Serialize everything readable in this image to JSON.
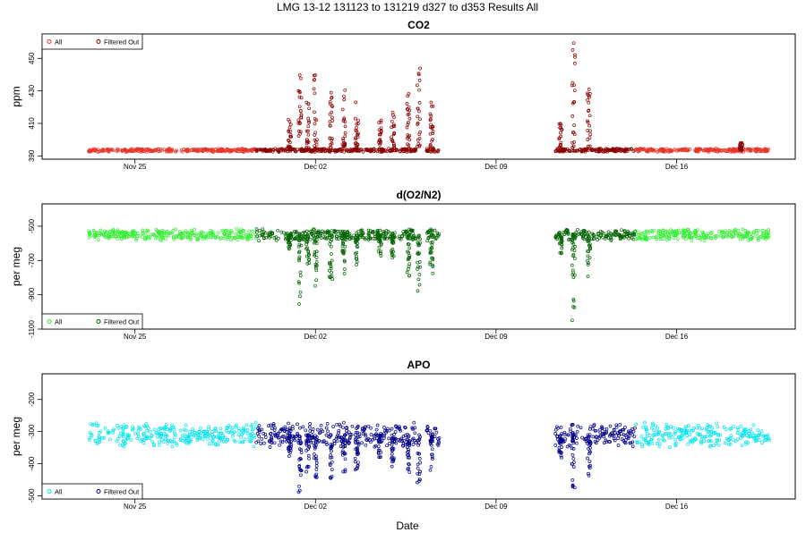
{
  "page_title": "LMG   13-12    131123 to 131219    d327 to d353   Results All",
  "xlabel": "Date",
  "x_ticks": [
    {
      "label": "Nov 25",
      "day": 2
    },
    {
      "label": "Dec 02",
      "day": 9
    },
    {
      "label": "Dec 09",
      "day": 16
    },
    {
      "label": "Dec 16",
      "day": 23
    }
  ],
  "x_range_days": [
    -1.6,
    27.6
  ],
  "chart_data": [
    {
      "type": "scatter",
      "title": "CO2",
      "ylabel": "ppm",
      "ylim": [
        388,
        465
      ],
      "yticks": [
        390,
        410,
        430,
        450
      ],
      "legend_position": "top-left",
      "legend": [
        {
          "label": "All",
          "color": "#e8352a"
        },
        {
          "label": "Filtered Out",
          "color": "#8b0000"
        }
      ],
      "baseline": 393.5,
      "noise": 0.6,
      "spike_direction": 1,
      "segments": [
        {
          "start": 0.2,
          "end": 6.7,
          "filtered": false
        },
        {
          "start": 6.7,
          "end": 11.4,
          "filtered": true
        },
        {
          "start": 11.4,
          "end": 12.9,
          "filtered": true
        },
        {
          "start": 13.3,
          "end": 13.8,
          "filtered": true
        },
        {
          "start": 18.3,
          "end": 21.4,
          "filtered": true
        },
        {
          "start": 21.4,
          "end": 22.8,
          "filtered": false
        },
        {
          "start": 22.8,
          "end": 26.6,
          "filtered": false
        }
      ],
      "spikes": [
        {
          "day": 8.0,
          "peak": 413
        },
        {
          "day": 8.4,
          "peak": 441
        },
        {
          "day": 8.7,
          "peak": 425
        },
        {
          "day": 9.0,
          "peak": 446
        },
        {
          "day": 9.6,
          "peak": 430
        },
        {
          "day": 10.1,
          "peak": 432
        },
        {
          "day": 10.6,
          "peak": 425
        },
        {
          "day": 11.5,
          "peak": 412
        },
        {
          "day": 12.0,
          "peak": 418
        },
        {
          "day": 12.6,
          "peak": 430
        },
        {
          "day": 13.0,
          "peak": 447
        },
        {
          "day": 13.5,
          "peak": 423
        },
        {
          "day": 18.5,
          "peak": 410
        },
        {
          "day": 19.0,
          "peak": 462
        },
        {
          "day": 19.6,
          "peak": 433
        },
        {
          "day": 25.5,
          "peak": 398
        }
      ]
    },
    {
      "type": "scatter",
      "title": "d(O2/N2)",
      "ylabel": "per meg",
      "ylim": [
        -1100,
        -370
      ],
      "yticks": [
        -1100,
        -900,
        -700,
        -500
      ],
      "legend_position": "bottom-left",
      "legend": [
        {
          "label": "All",
          "color": "#33ee33"
        },
        {
          "label": "Filtered Out",
          "color": "#006400"
        }
      ],
      "baseline": -550,
      "noise": 18,
      "spike_direction": -1,
      "segments": [
        {
          "start": 0.2,
          "end": 6.7,
          "filtered": false
        },
        {
          "start": 6.7,
          "end": 11.4,
          "filtered": true
        },
        {
          "start": 11.4,
          "end": 12.9,
          "filtered": true
        },
        {
          "start": 13.3,
          "end": 13.8,
          "filtered": true
        },
        {
          "start": 18.3,
          "end": 21.4,
          "filtered": true
        },
        {
          "start": 21.4,
          "end": 22.8,
          "filtered": false
        },
        {
          "start": 22.8,
          "end": 26.6,
          "filtered": false
        }
      ],
      "spikes": [
        {
          "day": 8.0,
          "peak": -640
        },
        {
          "day": 8.4,
          "peak": -960
        },
        {
          "day": 8.7,
          "peak": -760
        },
        {
          "day": 9.0,
          "peak": -900
        },
        {
          "day": 9.6,
          "peak": -820
        },
        {
          "day": 10.1,
          "peak": -780
        },
        {
          "day": 10.6,
          "peak": -730
        },
        {
          "day": 11.5,
          "peak": -680
        },
        {
          "day": 12.0,
          "peak": -720
        },
        {
          "day": 12.6,
          "peak": -800
        },
        {
          "day": 13.0,
          "peak": -900
        },
        {
          "day": 13.5,
          "peak": -780
        },
        {
          "day": 18.5,
          "peak": -660
        },
        {
          "day": 19.0,
          "peak": -1080
        },
        {
          "day": 19.6,
          "peak": -800
        }
      ]
    },
    {
      "type": "scatter",
      "title": "APO",
      "ylabel": "per meg",
      "ylim": [
        -510,
        -120
      ],
      "yticks": [
        -500,
        -400,
        -300,
        -200
      ],
      "legend_position": "bottom-left",
      "legend": [
        {
          "label": "All",
          "color": "#00e5ee"
        },
        {
          "label": "Filtered Out",
          "color": "#00008b"
        }
      ],
      "baseline": -310,
      "noise": 20,
      "spike_direction": -1,
      "segments": [
        {
          "start": 0.2,
          "end": 6.7,
          "filtered": false
        },
        {
          "start": 6.7,
          "end": 11.4,
          "filtered": true
        },
        {
          "start": 11.4,
          "end": 12.9,
          "filtered": true
        },
        {
          "start": 13.3,
          "end": 13.8,
          "filtered": true
        },
        {
          "start": 18.3,
          "end": 21.4,
          "filtered": true
        },
        {
          "start": 21.4,
          "end": 22.8,
          "filtered": false
        },
        {
          "start": 22.8,
          "end": 26.6,
          "filtered": false
        }
      ],
      "spikes": [
        {
          "day": 8.0,
          "peak": -380
        },
        {
          "day": 8.4,
          "peak": -495
        },
        {
          "day": 8.7,
          "peak": -440
        },
        {
          "day": 9.0,
          "peak": -470
        },
        {
          "day": 9.6,
          "peak": -450
        },
        {
          "day": 10.1,
          "peak": -430
        },
        {
          "day": 10.6,
          "peak": -420
        },
        {
          "day": 11.5,
          "peak": -380
        },
        {
          "day": 12.0,
          "peak": -410
        },
        {
          "day": 12.6,
          "peak": -440
        },
        {
          "day": 13.0,
          "peak": -470
        },
        {
          "day": 13.5,
          "peak": -430
        },
        {
          "day": 18.5,
          "peak": -400
        },
        {
          "day": 19.0,
          "peak": -480
        },
        {
          "day": 19.6,
          "peak": -440
        }
      ]
    }
  ]
}
